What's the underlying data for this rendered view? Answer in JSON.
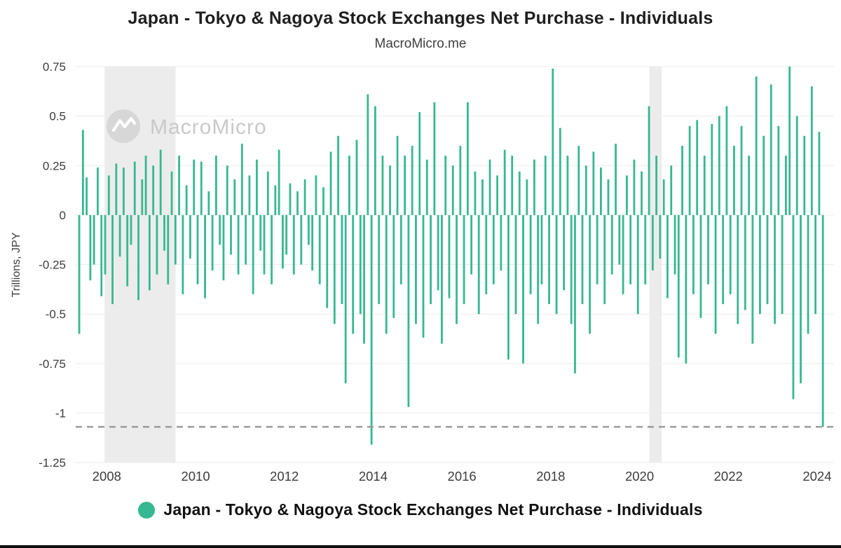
{
  "header": {
    "title": "Japan - Tokyo & Nagoya Stock Exchanges Net Purchase - Individuals",
    "subtitle": "MacroMicro.me"
  },
  "watermark": {
    "label": "MacroMicro"
  },
  "legend": {
    "label": "Japan - Tokyo & Nagoya Stock Exchanges Net Purchase - Individuals"
  },
  "colors": {
    "accent": "#36b890",
    "grid": "#ebebeb",
    "band": "#ececec",
    "dashed": "#9b9b9b",
    "axis_text": "#3c3c3c",
    "watermark_circle": "#d7d7d7",
    "watermark_text": "#c9c9c9"
  },
  "chart_data": {
    "type": "bar",
    "title": "Japan - Tokyo & Nagoya Stock Exchanges Net Purchase - Individuals",
    "subtitle": "MacroMicro.me",
    "xlabel": "",
    "ylabel": "Trillions, JPY",
    "ylim": [
      -1.25,
      0.75
    ],
    "xlim": [
      2007.3,
      2024.38
    ],
    "grid": true,
    "legend_position": "bottom",
    "yticks": [
      {
        "v": 0.75,
        "label": "0.75"
      },
      {
        "v": 0.5,
        "label": "0.5"
      },
      {
        "v": 0.25,
        "label": "0.25"
      },
      {
        "v": 0,
        "label": "0"
      },
      {
        "v": -0.25,
        "label": "-0.25"
      },
      {
        "v": -0.5,
        "label": "-0.5"
      },
      {
        "v": -0.75,
        "label": "-0.75"
      },
      {
        "v": -1,
        "label": "-1"
      },
      {
        "v": -1.25,
        "label": "-1.25"
      }
    ],
    "xticks": [
      {
        "v": 2008,
        "label": "2008"
      },
      {
        "v": 2010,
        "label": "2010"
      },
      {
        "v": 2012,
        "label": "2012"
      },
      {
        "v": 2014,
        "label": "2014"
      },
      {
        "v": 2016,
        "label": "2016"
      },
      {
        "v": 2018,
        "label": "2018"
      },
      {
        "v": 2020,
        "label": "2020"
      },
      {
        "v": 2022,
        "label": "2022"
      },
      {
        "v": 2024,
        "label": "2024"
      }
    ],
    "dashed_line_y": -1.07,
    "recession_bands": [
      [
        2007.95,
        2009.55
      ],
      [
        2020.22,
        2020.5
      ]
    ],
    "series_name": "Japan - Tokyo & Nagoya Stock Exchanges Net Purchase - Individuals",
    "x_start": 2007.38,
    "x_step": 0.083333,
    "values": [
      -0.6,
      0.43,
      0.19,
      -0.33,
      -0.25,
      0.24,
      -0.41,
      -0.3,
      0.2,
      -0.45,
      0.26,
      -0.21,
      0.24,
      -0.36,
      -0.15,
      0.27,
      -0.43,
      0.18,
      0.3,
      -0.38,
      0.25,
      -0.3,
      0.33,
      -0.18,
      -0.35,
      0.22,
      -0.25,
      0.3,
      -0.4,
      0.15,
      -0.22,
      0.28,
      -0.35,
      0.27,
      -0.42,
      0.12,
      -0.28,
      0.3,
      -0.15,
      -0.33,
      0.25,
      -0.2,
      0.18,
      -0.3,
      0.36,
      -0.25,
      0.2,
      -0.4,
      0.28,
      -0.18,
      -0.3,
      0.22,
      -0.35,
      0.15,
      0.33,
      -0.27,
      -0.2,
      0.16,
      -0.3,
      0.12,
      -0.25,
      0.18,
      -0.15,
      -0.28,
      0.2,
      -0.35,
      0.14,
      -0.47,
      0.32,
      -0.55,
      0.4,
      -0.45,
      -0.85,
      0.3,
      -0.6,
      0.38,
      -0.5,
      -0.65,
      0.61,
      -1.16,
      0.55,
      -0.45,
      0.3,
      -0.6,
      0.25,
      -0.52,
      0.4,
      -0.35,
      0.3,
      -0.97,
      0.35,
      -0.55,
      0.52,
      -0.62,
      0.28,
      -0.45,
      0.57,
      -0.38,
      -0.65,
      0.3,
      -0.42,
      0.25,
      -0.55,
      0.35,
      -0.45,
      0.57,
      -0.3,
      0.22,
      -0.5,
      0.18,
      -0.4,
      0.28,
      -0.35,
      0.2,
      -0.28,
      0.33,
      -0.73,
      0.3,
      -0.5,
      0.22,
      -0.75,
      0.18,
      -0.4,
      0.28,
      -0.55,
      -0.35,
      0.3,
      -0.45,
      0.74,
      -0.5,
      0.44,
      -0.38,
      0.3,
      -0.55,
      -0.8,
      0.35,
      -0.45,
      0.25,
      -0.6,
      0.32,
      -0.35,
      0.24,
      -0.45,
      0.18,
      -0.3,
      0.36,
      -0.25,
      -0.4,
      0.2,
      -0.35,
      0.28,
      -0.5,
      0.22,
      -0.35,
      0.55,
      -0.28,
      0.3,
      -0.22,
      0.18,
      -0.42,
      0.25,
      -0.3,
      -0.72,
      0.35,
      -0.75,
      0.45,
      -0.4,
      0.48,
      -0.52,
      0.3,
      -0.35,
      0.46,
      -0.6,
      0.5,
      -0.45,
      0.55,
      -0.4,
      0.35,
      -0.55,
      0.45,
      -0.48,
      0.3,
      -0.65,
      0.7,
      -0.5,
      0.4,
      -0.45,
      0.66,
      -0.55,
      0.45,
      -0.5,
      0.3,
      0.75,
      -0.93,
      0.5,
      -0.85,
      0.4,
      -0.6,
      0.65,
      -0.5,
      0.42,
      -1.07
    ]
  }
}
